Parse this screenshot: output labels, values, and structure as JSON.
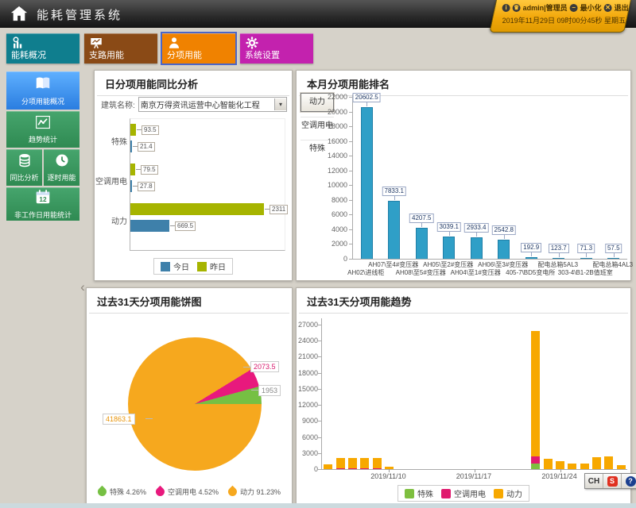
{
  "header": {
    "title": "能耗管理系统",
    "badge": {
      "user": "admin|管理员",
      "minimize": "最小化",
      "logout": "退出",
      "datetime": "2019年11月29日 09时00分45秒 星期五"
    }
  },
  "nav_tabs": [
    {
      "name": "tab-energy-overview",
      "label": "能耗概况",
      "color": "#0f7e8e",
      "icon": "bar-chart-icon",
      "selected": false
    },
    {
      "name": "tab-branch-energy",
      "label": "支路用能",
      "color": "#8a4a16",
      "icon": "presentation-icon",
      "selected": false
    },
    {
      "name": "tab-subitem-energy",
      "label": "分项用能",
      "color": "#f08200",
      "icon": "user-icon",
      "selected": true
    },
    {
      "name": "tab-system-settings",
      "label": "系统设置",
      "color": "#c322ae",
      "icon": "gear-icon",
      "selected": false
    }
  ],
  "sidebar": {
    "rows": [
      [
        {
          "name": "sidebar-item-subitem-overview",
          "label": "分项用能概况",
          "icon": "book-icon",
          "selected": true
        }
      ],
      [
        {
          "name": "sidebar-item-trend-stats",
          "label": "趋势统计",
          "icon": "trend-icon",
          "selected": false
        }
      ],
      [
        {
          "name": "sidebar-item-yoy-analysis",
          "label": "同比分析",
          "icon": "database-icon",
          "selected": false
        },
        {
          "name": "sidebar-item-hourly-energy",
          "label": "逐时用能",
          "icon": "clock-icon",
          "selected": false
        }
      ],
      [
        {
          "name": "sidebar-item-nonworkday-stats",
          "label": "非工作日用能统计",
          "icon": "calendar-icon",
          "icon_text": "12",
          "selected": false
        }
      ]
    ]
  },
  "panel_compare": {
    "title": "日分项用能同比分析",
    "building_label": "建筑名称:",
    "building_value": "南京万得资讯运营中心智能化工程",
    "chart_data": {
      "type": "bar-horizontal",
      "categories": [
        "特殊",
        "空调用电",
        "动力"
      ],
      "series": [
        {
          "name": "昨日",
          "color": "#a6b400",
          "values": [
            93.5,
            79.5,
            2311
          ]
        },
        {
          "name": "今日",
          "color": "#3e80aa",
          "values": [
            21.4,
            27.8,
            669.5
          ]
        }
      ],
      "xmax": 2400,
      "legend": [
        {
          "name": "今日",
          "color": "#3e80aa"
        },
        {
          "name": "昨日",
          "color": "#a6b400"
        }
      ]
    }
  },
  "panel_ranking": {
    "title": "本月分项用能排名",
    "buttons": [
      "动力",
      "空调用电",
      "特殊"
    ],
    "selected_button": "动力",
    "chart_data": {
      "type": "bar",
      "categories": [
        "AH02\\进线柜",
        "AH07\\至4#变压器",
        "AH08\\至5#变压器",
        "AH05\\至2#变压器",
        "AH04\\至1#变压器",
        "AH06\\至3#变压器",
        "405-7\\BD5变电所",
        "配电总箱5AL3",
        "303-4\\B1-2B值班室",
        "配电总箱4AL3"
      ],
      "values": [
        20602.5,
        7833.1,
        4207.5,
        3039.1,
        2933.4,
        2542.8,
        192.9,
        123.7,
        71.3,
        57.5
      ],
      "bar_color": "#2f9fc7",
      "bar_border": "#1f7fa8",
      "ylim": [
        0,
        22000
      ],
      "ytick_step": 2000
    }
  },
  "panel_pie": {
    "title": "过去31天分项用能饼图",
    "chart_data": {
      "type": "pie",
      "slices": [
        {
          "name": "特殊",
          "value": 1953,
          "percent": "4.26%",
          "color": "#76c043",
          "label_color": "#888888"
        },
        {
          "name": "空调用电",
          "value": 2073.5,
          "percent": "4.52%",
          "color": "#e8197d",
          "label_color": "#d81b6e"
        },
        {
          "name": "动力",
          "value": 41863.1,
          "percent": "91.23%",
          "color": "#f6a81e",
          "label_color": "#e8950c"
        }
      ]
    }
  },
  "panel_trend": {
    "title": "过去31天分项用能趋势",
    "chart_data": {
      "type": "stacked-bar",
      "slots": 25,
      "x_labels": [
        "2019/11/10",
        "2019/11/17",
        "2019/11/24"
      ],
      "x_label_slots": [
        5,
        12,
        19
      ],
      "ylim": [
        0,
        27000
      ],
      "ytick_step": 3000,
      "series": [
        {
          "name": "特殊",
          "color": "#7ebf3f",
          "values": [
            0,
            0,
            0,
            0,
            0,
            0,
            0,
            0,
            0,
            0,
            0,
            0,
            0,
            0,
            0,
            0,
            0,
            1100,
            0,
            0,
            0,
            0,
            0,
            0,
            0
          ]
        },
        {
          "name": "空调用电",
          "color": "#e01a6e",
          "values": [
            0,
            60,
            60,
            60,
            60,
            0,
            0,
            0,
            0,
            0,
            0,
            0,
            0,
            0,
            0,
            0,
            0,
            1300,
            0,
            0,
            0,
            0,
            0,
            0,
            0
          ]
        },
        {
          "name": "动力",
          "color": "#f7a800",
          "values": [
            950,
            1900,
            1900,
            1950,
            1950,
            450,
            0,
            0,
            0,
            0,
            0,
            0,
            0,
            0,
            0,
            0,
            0,
            23400,
            1900,
            1450,
            1000,
            1100,
            2250,
            2400,
            700
          ]
        }
      ]
    }
  },
  "ime_toolbar": {
    "lang": "CH",
    "sogou": "S",
    "help": "?",
    "spin_up": "▲",
    "spin_down": "▼"
  },
  "collapse_arrow": "‹"
}
